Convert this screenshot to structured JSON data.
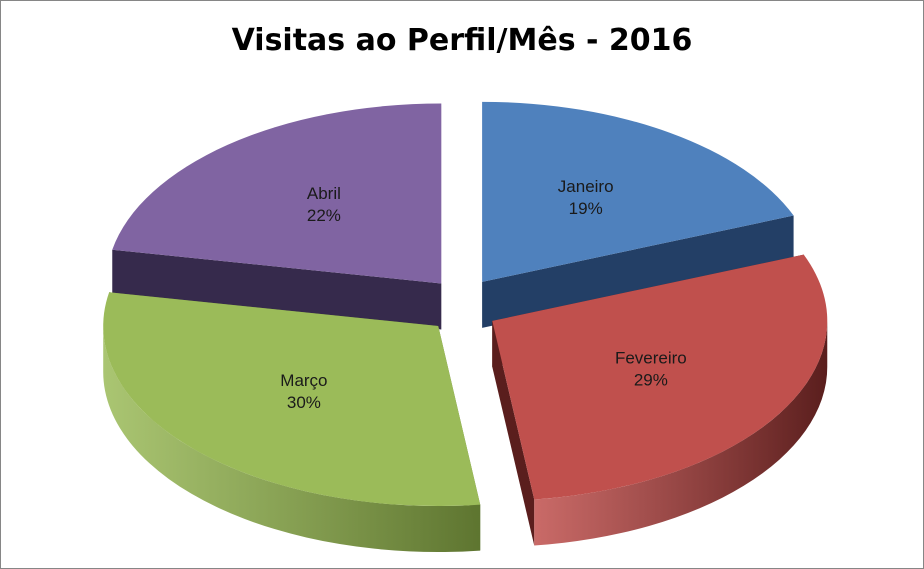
{
  "chart_data": {
    "type": "pie",
    "title": "Visitas ao Perfil/Mês - 2016",
    "categories": [
      "Janeiro",
      "Fevereiro",
      "Março",
      "Abril"
    ],
    "values": [
      19,
      29,
      30,
      22
    ],
    "value_labels": [
      "19%",
      "29%",
      "30%",
      "22%"
    ],
    "colors": [
      "#4F81BD",
      "#C0504D",
      "#9BBB59",
      "#8064A2"
    ],
    "side_colors": [
      "#233F66",
      "#5A1E1D",
      "#5E7530",
      "#362A4C"
    ],
    "exploded": true,
    "three_d": true,
    "legend": "none"
  }
}
